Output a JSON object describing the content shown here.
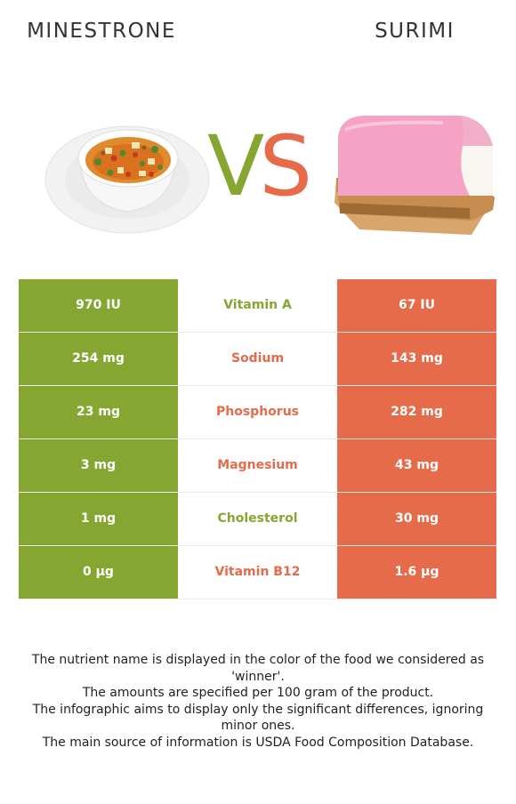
{
  "header": {
    "left_title": "MINESTRONE",
    "right_title": "SURIMI",
    "vs_v": "V",
    "vs_s": "S"
  },
  "colors": {
    "left_food": "#86a632",
    "right_food": "#e56b4b"
  },
  "comparison": {
    "rows": [
      {
        "left": "970 IU",
        "nutrient": "Vitamin A",
        "right": "67 IU",
        "winner": "left"
      },
      {
        "left": "254 mg",
        "nutrient": "Sodium",
        "right": "143 mg",
        "winner": "right"
      },
      {
        "left": "23 mg",
        "nutrient": "Phosphorus",
        "right": "282 mg",
        "winner": "right"
      },
      {
        "left": "3 mg",
        "nutrient": "Magnesium",
        "right": "43 mg",
        "winner": "right"
      },
      {
        "left": "1 mg",
        "nutrient": "Cholesterol",
        "right": "30 mg",
        "winner": "left"
      },
      {
        "left": "0 µg",
        "nutrient": "Vitamin B12",
        "right": "1.6 µg",
        "winner": "right"
      }
    ]
  },
  "footnote": {
    "line1": "The nutrient name is displayed in the color of the food we considered as 'winner'.",
    "line2": "The amounts are specified per 100 gram of the product.",
    "line3": "The infographic aims to display only the significant differences, ignoring minor ones.",
    "line4": "The main source of information is USDA Food Composition Database."
  }
}
